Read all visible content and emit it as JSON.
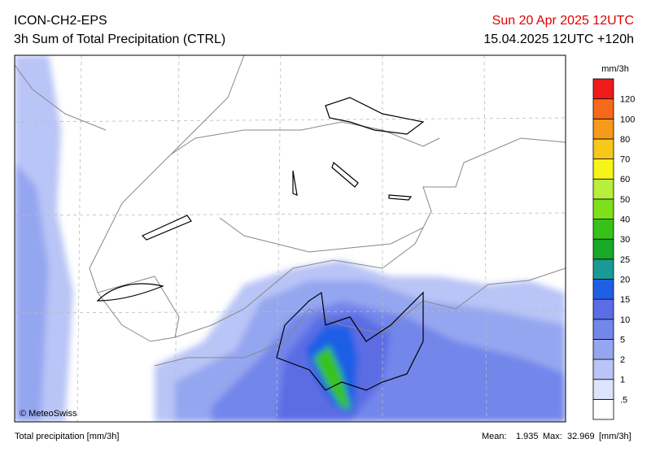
{
  "header": {
    "model": "ICON-CH2-EPS",
    "product": "3h Sum of Total Precipitation (CTRL)",
    "valid_time": "Sun 20 Apr 2025 12UTC",
    "run": "15.04.2025 12UTC +120h"
  },
  "map": {
    "credit": "© MeteoSwiss"
  },
  "legend": {
    "unit": "mm/3h",
    "labels": [
      ".5",
      "1",
      "2",
      "5",
      "10",
      "15",
      "20",
      "25",
      "30",
      "40",
      "50",
      "60",
      "70",
      "80",
      "100",
      "120"
    ],
    "colors": [
      "#ffffff",
      "#dde3fb",
      "#b9c5f6",
      "#95a6f0",
      "#7386ea",
      "#5b6de4",
      "#1f5fe6",
      "#1a9a96",
      "#1aa828",
      "#37c21a",
      "#7ee01a",
      "#b8ee3c",
      "#f5f51a",
      "#f5c81a",
      "#f59a1a",
      "#f56a1a",
      "#f01a1a"
    ]
  },
  "footer": {
    "variable": "Total precipitation [mm/3h]",
    "mean_label": "Mean:",
    "mean": 1.935,
    "max_label": "Max:",
    "max": 32.969,
    "unit": "[mm/3h]"
  }
}
